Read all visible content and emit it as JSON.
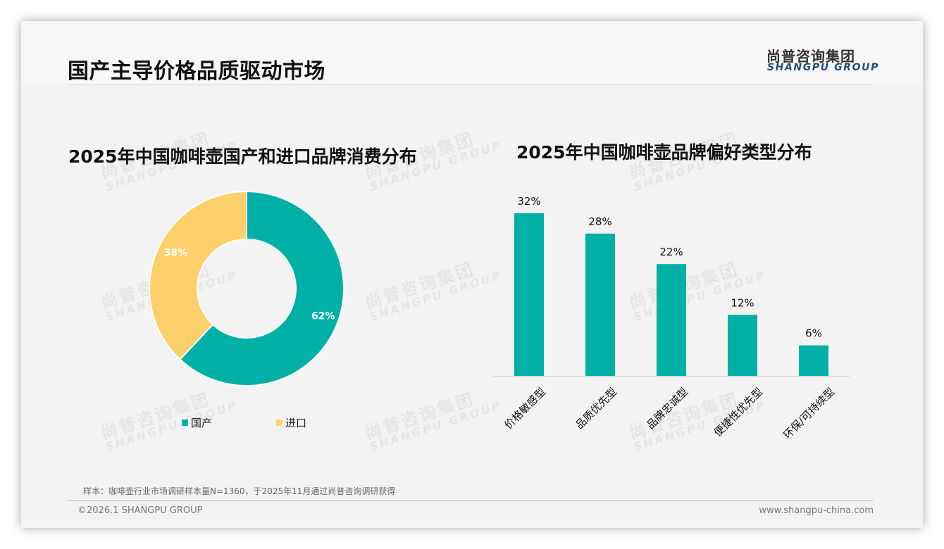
{
  "header": {
    "title": "国产主导价格品质驱动市场",
    "logo_cn": "尚普咨询集团",
    "logo_en": "SHANGPU GROUP"
  },
  "watermark": {
    "cn": "尚普咨询集团",
    "en": "SHANGPU GROUP"
  },
  "colors": {
    "teal": "#00b0a7",
    "yellow": "#fdd06b",
    "title": "#111111",
    "logo_blue": "#1f4e79"
  },
  "chart_data": [
    {
      "type": "pie",
      "subtype": "donut",
      "title": "2025年中国咖啡壶国产和进口品牌消费分布",
      "categories": [
        "国产",
        "进口"
      ],
      "values": [
        62,
        38
      ],
      "labels": [
        "62%",
        "38%"
      ],
      "colors": [
        "#00b0a7",
        "#fdd06b"
      ],
      "legend_position": "bottom"
    },
    {
      "type": "bar",
      "title": "2025年中国咖啡壶品牌偏好类型分布",
      "categories": [
        "价格敏感型",
        "品质优先型",
        "品牌忠诚型",
        "便捷性优先型",
        "环保/可持续型"
      ],
      "values": [
        32,
        28,
        22,
        12,
        6
      ],
      "labels": [
        "32%",
        "28%",
        "22%",
        "12%",
        "6%"
      ],
      "color": "#00b0a7",
      "xlabel": "",
      "ylabel": "",
      "ylim": [
        0,
        32
      ],
      "grid": false,
      "x_tick_rotation": -45
    }
  ],
  "footer": {
    "note": "样本：咖啡壶行业市场调研样本量N=1360，于2025年11月通过尚普咨询调研获得",
    "copyright": "©2026.1 SHANGPU GROUP",
    "website": "www.shangpu-china.com"
  }
}
